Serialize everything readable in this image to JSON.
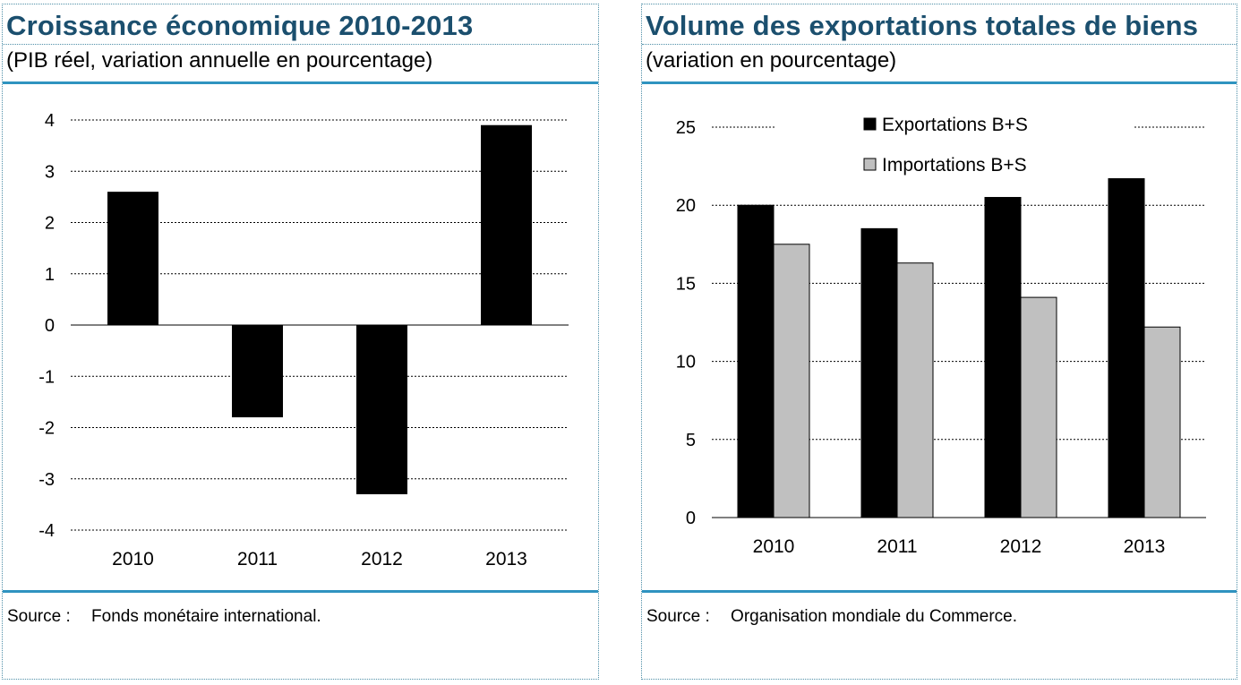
{
  "left": {
    "title": "Croissance économique 2010-2013",
    "subtitle": "(PIB réel, variation annuelle en pourcentage)",
    "source_label": "Source :",
    "source_text": "Fonds monétaire international."
  },
  "right": {
    "title": "Volume des exportations totales de biens",
    "subtitle": "(variation en pourcentage)",
    "source_label": "Source :",
    "source_text": "Organisation mondiale du Commerce."
  },
  "colors": {
    "title": "#1b4f6e",
    "rule": "#2f93c0",
    "exports": "#000000",
    "imports": "#c0c0c0",
    "gdp": "#000000"
  },
  "chart_data": [
    {
      "type": "bar",
      "title": "Croissance économique 2010-2013",
      "subtitle": "(PIB réel, variation annuelle en pourcentage)",
      "categories": [
        "2010",
        "2011",
        "2012",
        "2013"
      ],
      "values": [
        2.6,
        -1.8,
        -3.3,
        3.9
      ],
      "yticks": [
        "4",
        "3",
        "2",
        "1",
        "0",
        "-1",
        "-2",
        "-3",
        "-4"
      ],
      "ylim": [
        -4,
        4
      ],
      "grid": true,
      "legend": "none"
    },
    {
      "type": "bar",
      "title": "Volume des exportations totales de biens",
      "subtitle": "(variation en pourcentage)",
      "categories": [
        "2010",
        "2011",
        "2012",
        "2013"
      ],
      "series": [
        {
          "name": "Exportations B+S",
          "values": [
            20.0,
            18.5,
            20.5,
            21.7
          ]
        },
        {
          "name": "Importations B+S",
          "values": [
            17.5,
            16.3,
            14.1,
            12.2
          ]
        }
      ],
      "yticks": [
        "25",
        "20",
        "15",
        "10",
        "5",
        "0"
      ],
      "ylim": [
        0,
        25
      ],
      "grid": true,
      "legend": "top"
    }
  ]
}
